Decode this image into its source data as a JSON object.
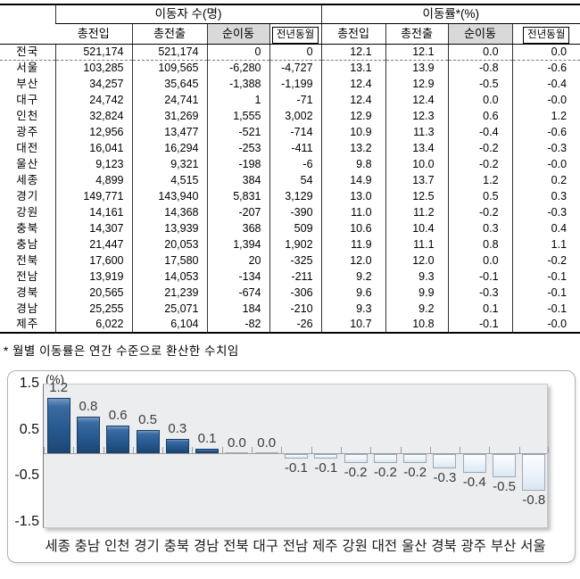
{
  "table": {
    "group_headers": [
      "이동자 수(명)",
      "이동률*(%)"
    ],
    "sub_headers": [
      "총전입",
      "총전출",
      "순이동",
      "전년동월",
      "총전입",
      "총전출",
      "순이동",
      "전년동월"
    ],
    "rows": [
      {
        "region": "전국",
        "is_total": true,
        "values": [
          "521,174",
          "521,174",
          "0",
          "0",
          "12.1",
          "12.1",
          "0.0",
          "0.0"
        ]
      },
      {
        "region": "서울",
        "is_total": false,
        "values": [
          "103,285",
          "109,565",
          "-6,280",
          "-4,727",
          "13.1",
          "13.9",
          "-0.8",
          "-0.6"
        ]
      },
      {
        "region": "부산",
        "is_total": false,
        "values": [
          "34,257",
          "35,645",
          "-1,388",
          "-1,199",
          "12.4",
          "12.9",
          "-0.5",
          "-0.4"
        ]
      },
      {
        "region": "대구",
        "is_total": false,
        "values": [
          "24,742",
          "24,741",
          "1",
          "-71",
          "12.4",
          "12.4",
          "0.0",
          "-0.0"
        ]
      },
      {
        "region": "인천",
        "is_total": false,
        "values": [
          "32,824",
          "31,269",
          "1,555",
          "3,002",
          "12.9",
          "12.3",
          "0.6",
          "1.2"
        ]
      },
      {
        "region": "광주",
        "is_total": false,
        "values": [
          "12,956",
          "13,477",
          "-521",
          "-714",
          "10.9",
          "11.3",
          "-0.4",
          "-0.6"
        ]
      },
      {
        "region": "대전",
        "is_total": false,
        "values": [
          "16,041",
          "16,294",
          "-253",
          "-411",
          "13.2",
          "13.4",
          "-0.2",
          "-0.3"
        ]
      },
      {
        "region": "울산",
        "is_total": false,
        "values": [
          "9,123",
          "9,321",
          "-198",
          "-6",
          "9.8",
          "10.0",
          "-0.2",
          "-0.0"
        ]
      },
      {
        "region": "세종",
        "is_total": false,
        "values": [
          "4,899",
          "4,515",
          "384",
          "54",
          "14.9",
          "13.7",
          "1.2",
          "0.2"
        ]
      },
      {
        "region": "경기",
        "is_total": false,
        "values": [
          "149,771",
          "143,940",
          "5,831",
          "3,129",
          "13.0",
          "12.5",
          "0.5",
          "0.3"
        ]
      },
      {
        "region": "강원",
        "is_total": false,
        "values": [
          "14,161",
          "14,368",
          "-207",
          "-390",
          "11.0",
          "11.2",
          "-0.2",
          "-0.3"
        ]
      },
      {
        "region": "충북",
        "is_total": false,
        "values": [
          "14,307",
          "13,939",
          "368",
          "509",
          "10.6",
          "10.4",
          "0.3",
          "0.4"
        ]
      },
      {
        "region": "충남",
        "is_total": false,
        "values": [
          "21,447",
          "20,053",
          "1,394",
          "1,902",
          "11.9",
          "11.1",
          "0.8",
          "1.1"
        ]
      },
      {
        "region": "전북",
        "is_total": false,
        "values": [
          "17,600",
          "17,580",
          "20",
          "-325",
          "12.0",
          "12.0",
          "0.0",
          "-0.2"
        ]
      },
      {
        "region": "전남",
        "is_total": false,
        "values": [
          "13,919",
          "14,053",
          "-134",
          "-211",
          "9.2",
          "9.3",
          "-0.1",
          "-0.1"
        ]
      },
      {
        "region": "경북",
        "is_total": false,
        "values": [
          "20,565",
          "21,239",
          "-674",
          "-306",
          "9.6",
          "9.9",
          "-0.3",
          "-0.1"
        ]
      },
      {
        "region": "경남",
        "is_total": false,
        "values": [
          "25,255",
          "25,071",
          "184",
          "-210",
          "9.3",
          "9.2",
          "0.1",
          "-0.1"
        ]
      },
      {
        "region": "제주",
        "is_total": false,
        "values": [
          "6,022",
          "6,104",
          "-82",
          "-26",
          "10.7",
          "10.8",
          "-0.1",
          "-0.0"
        ]
      }
    ]
  },
  "footnote": "* 월별 이동률은 연간 수준으로 환산한 수치임",
  "chart_data": {
    "type": "bar",
    "title": "",
    "ylabel": "(%)",
    "xlabel": "",
    "categories": [
      "세종",
      "충남",
      "인천",
      "경기",
      "충북",
      "경남",
      "전북",
      "대구",
      "전남",
      "제주",
      "강원",
      "대전",
      "울산",
      "경북",
      "광주",
      "부산",
      "서울"
    ],
    "values": [
      1.2,
      0.8,
      0.6,
      0.5,
      0.3,
      0.1,
      0.0,
      0.0,
      -0.1,
      -0.1,
      -0.2,
      -0.2,
      -0.2,
      -0.3,
      -0.4,
      -0.5,
      -0.8
    ],
    "value_labels": [
      "1.2",
      "0.8",
      "0.6",
      "0.5",
      "0.3",
      "0.1",
      "0.0",
      "0.0",
      "-0.1",
      "-0.1",
      "-0.2",
      "-0.2",
      "-0.2",
      "-0.3",
      "-0.4",
      "-0.5",
      "-0.8"
    ],
    "yticks": [
      1.5,
      0.5,
      -0.5,
      -1.5
    ],
    "ytick_labels": [
      "1.5",
      "0.5",
      "-0.5",
      "-1.5"
    ],
    "ylim": [
      -1.5,
      1.5
    ],
    "grid": false,
    "legend": false,
    "positive_bar_color": "#275a90",
    "negative_bar_color": "#e4eef8",
    "plot_background": "#ecedef"
  }
}
